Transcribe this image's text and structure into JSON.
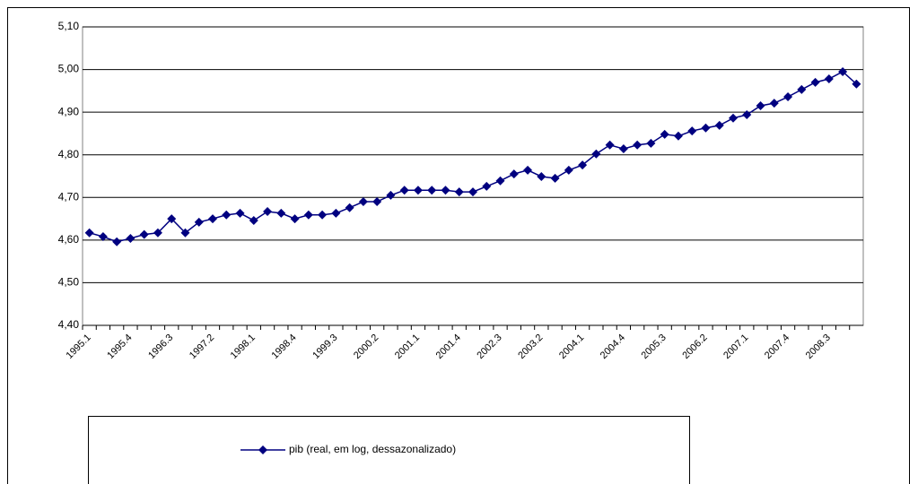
{
  "chart_data": {
    "type": "line",
    "categories": [
      "1995.1",
      null,
      null,
      "1995.4",
      null,
      null,
      "1996.3",
      null,
      null,
      "1997.2",
      null,
      null,
      "1998.1",
      null,
      null,
      "1998.4",
      null,
      null,
      "1999.3",
      null,
      null,
      "2000.2",
      null,
      null,
      "2001.1",
      null,
      null,
      "2001.4",
      null,
      null,
      "2002.3",
      null,
      null,
      "2003.2",
      null,
      null,
      "2004.1",
      null,
      null,
      "2004.4",
      null,
      null,
      "2005.3",
      null,
      null,
      "2006.2",
      null,
      null,
      "2007.1",
      null,
      null,
      "2007.4",
      null,
      null,
      "2008.3",
      null,
      null
    ],
    "series": [
      {
        "name": "pib (real, em log, dessazonalizado)",
        "color": "#000080",
        "values": [
          4.617,
          4.608,
          4.596,
          4.604,
          4.613,
          4.617,
          4.65,
          4.617,
          4.642,
          4.65,
          4.659,
          4.663,
          4.646,
          4.667,
          4.663,
          4.65,
          4.659,
          4.659,
          4.663,
          4.676,
          4.69,
          4.69,
          4.705,
          4.717,
          4.717,
          4.717,
          4.717,
          4.713,
          4.713,
          4.726,
          4.739,
          4.755,
          4.764,
          4.749,
          4.745,
          4.764,
          4.776,
          4.802,
          4.823,
          4.814,
          4.823,
          4.827,
          4.848,
          4.844,
          4.856,
          4.863,
          4.869,
          4.886,
          4.894,
          4.915,
          4.921,
          4.936,
          4.953,
          4.97,
          4.978,
          4.995,
          4.966
        ]
      }
    ],
    "ylim": [
      4.4,
      5.1
    ],
    "yticks": [
      {
        "value": 4.4,
        "label": "4,40"
      },
      {
        "value": 4.5,
        "label": "4,50"
      },
      {
        "value": 4.6,
        "label": "4,60"
      },
      {
        "value": 4.7,
        "label": "4,70"
      },
      {
        "value": 4.8,
        "label": "4,80"
      },
      {
        "value": 4.9,
        "label": "4,90"
      },
      {
        "value": 5.0,
        "label": "5,00"
      },
      {
        "value": 5.1,
        "label": "5,10"
      }
    ],
    "grid": true
  }
}
